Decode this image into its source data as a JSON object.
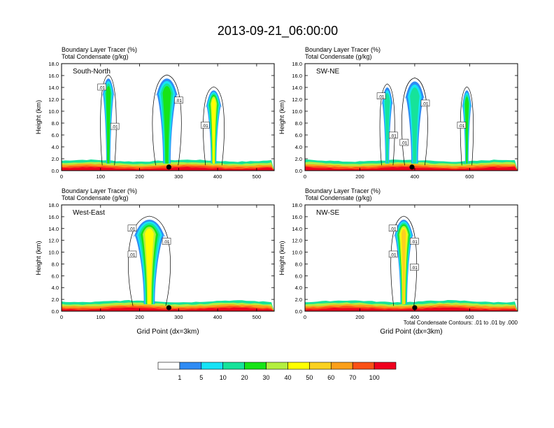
{
  "title": "2013-09-21_06:00:00",
  "footnote": "Total Condensate Contours: .01 to .01 by .000",
  "palette": [
    "#ffffff",
    "#2f8cf4",
    "#17e3f6",
    "#16e39a",
    "#17e417",
    "#b3ef3f",
    "#ffff00",
    "#fbd120",
    "#fb9f1a",
    "#fb5116",
    "#f0001e"
  ],
  "colorbar": {
    "labels": [
      "1",
      "5",
      "10",
      "20",
      "30",
      "40",
      "50",
      "60",
      "70",
      "100"
    ]
  },
  "chart_data": [
    {
      "type": "heatmap",
      "panel_label": "South-North",
      "subtitle_line1": "Boundary Layer Tracer   (%)",
      "subtitle_line2": "Total Condensate   (g/kg)",
      "ylabel": "Height (km)",
      "xlabel": "",
      "xlim": [
        0,
        545
      ],
      "ylim": [
        0,
        18
      ],
      "xticks": [
        0,
        100,
        200,
        300,
        400,
        500
      ],
      "yticks": [
        "0.0",
        "2.0",
        "4.0",
        "6.0",
        "8.0",
        "10.0",
        "12.0",
        "14.0",
        "16.0",
        "18.0"
      ],
      "marker_x": 275,
      "contour_labels": [
        ".01",
        ".01",
        ".01",
        ".01"
      ],
      "plumes": [
        {
          "x": 120,
          "top": 15.5,
          "width": 30,
          "peak": 4
        },
        {
          "x": 270,
          "top": 15.5,
          "width": 55,
          "peak": 4
        },
        {
          "x": 390,
          "top": 13.5,
          "width": 40,
          "peak": 6
        }
      ]
    },
    {
      "type": "heatmap",
      "panel_label": "SW-NE",
      "subtitle_line1": "Boundary Layer Tracer   (%)",
      "subtitle_line2": "Total Condensate   (g/kg)",
      "ylabel": "Height (km)",
      "xlabel": "",
      "xlim": [
        0,
        775
      ],
      "ylim": [
        0,
        18
      ],
      "xticks": [
        0,
        200,
        400,
        600
      ],
      "yticks": [
        "0.0",
        "2.0",
        "4.0",
        "6.0",
        "8.0",
        "10.0",
        "12.0",
        "14.0",
        "16.0",
        "18.0"
      ],
      "marker_x": 390,
      "contour_labels": [
        ".01",
        ".01",
        ".01",
        ".01",
        ".01"
      ],
      "plumes": [
        {
          "x": 300,
          "top": 14.0,
          "width": 40,
          "peak": 3
        },
        {
          "x": 400,
          "top": 15.0,
          "width": 70,
          "peak": 3
        },
        {
          "x": 590,
          "top": 13.5,
          "width": 35,
          "peak": 4
        }
      ]
    },
    {
      "type": "heatmap",
      "panel_label": "West-East",
      "subtitle_line1": "Boundary Layer Tracer   (%)",
      "subtitle_line2": "Total Condensate   (g/kg)",
      "ylabel": "Height (km)",
      "xlabel": "Grid Point  (dx=3km)",
      "xlim": [
        0,
        545
      ],
      "ylim": [
        0,
        18
      ],
      "xticks": [
        0,
        100,
        200,
        300,
        400,
        500
      ],
      "yticks": [
        "0.0",
        "2.0",
        "4.0",
        "6.0",
        "8.0",
        "10.0",
        "12.0",
        "14.0",
        "16.0",
        "18.0"
      ],
      "marker_x": 275,
      "contour_labels": [
        ".01",
        ".01",
        ".01"
      ],
      "plumes": [
        {
          "x": 225,
          "top": 15.5,
          "width": 80,
          "peak": 6
        }
      ]
    },
    {
      "type": "heatmap",
      "panel_label": "NW-SE",
      "subtitle_line1": "Boundary Layer Tracer   (%)",
      "subtitle_line2": "Total Condensate   (g/kg)",
      "ylabel": "Height (km)",
      "xlabel": "Grid Point  (dx=3km)",
      "xlim": [
        0,
        775
      ],
      "ylim": [
        0,
        18
      ],
      "xticks": [
        0,
        200,
        400,
        600
      ],
      "yticks": [
        "0.0",
        "2.0",
        "4.0",
        "6.0",
        "8.0",
        "10.0",
        "12.0",
        "14.0",
        "16.0",
        "18.0"
      ],
      "marker_x": 400,
      "contour_labels": [
        ".01",
        ".01",
        ".01",
        ".01"
      ],
      "plumes": [
        {
          "x": 360,
          "top": 15.5,
          "width": 70,
          "peak": 7
        }
      ]
    }
  ]
}
